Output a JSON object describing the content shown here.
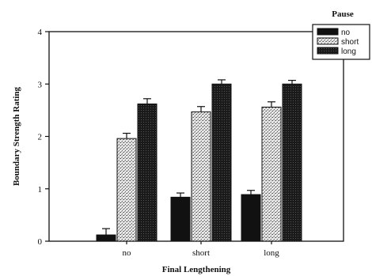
{
  "chart_data": {
    "type": "bar",
    "xlabel": "Final Lengthening",
    "ylabel": "Boundary Strength Rating",
    "categories": [
      "no",
      "short",
      "long"
    ],
    "ylim": [
      0,
      4
    ],
    "yticks": [
      0,
      1,
      2,
      3,
      4
    ],
    "grid": false,
    "error_bars": true,
    "legend": {
      "title": "Pause",
      "placement": "top-right"
    },
    "series": [
      {
        "name": "no",
        "values": [
          0.12,
          0.84,
          0.89
        ],
        "errors": [
          0.12,
          0.08,
          0.08
        ],
        "color": "#111111",
        "pattern": "solid"
      },
      {
        "name": "short",
        "values": [
          1.96,
          2.47,
          2.56
        ],
        "errors": [
          0.1,
          0.1,
          0.1
        ],
        "color": "#bdbdbd",
        "pattern": "stipple"
      },
      {
        "name": "long",
        "values": [
          2.62,
          3.0,
          3.0
        ],
        "errors": [
          0.1,
          0.08,
          0.07
        ],
        "color": "#1a1a1a",
        "pattern": "dense"
      }
    ]
  }
}
